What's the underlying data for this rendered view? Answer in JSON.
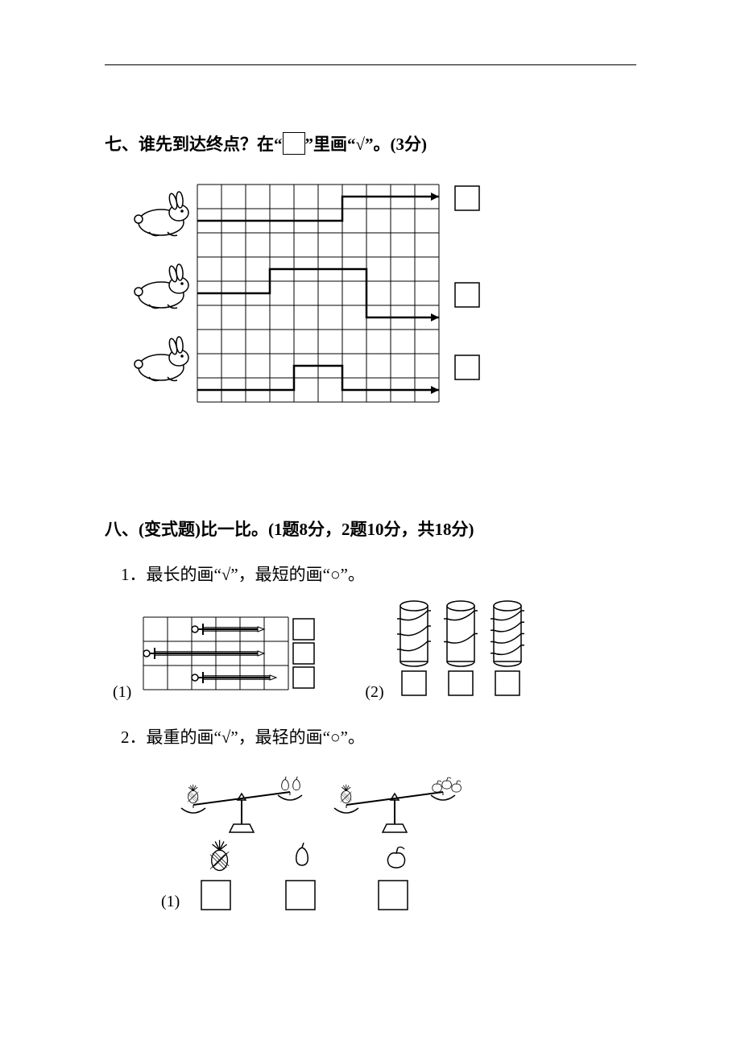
{
  "q7": {
    "title_prefix": "七、谁先到达终点？在“",
    "title_suffix": "”里画“√”。(3分)",
    "grid": {
      "cols": 10,
      "rows": 9,
      "cell": 30
    },
    "rabbits": [
      {
        "row": 1,
        "path_row": 1,
        "segments": [
          [
            0,
            1,
            6,
            1
          ],
          [
            6,
            1,
            6,
            0
          ],
          [
            6,
            0,
            10,
            0
          ]
        ]
      },
      {
        "row": 4,
        "path_row": 4,
        "segments": [
          [
            0,
            4,
            3,
            4
          ],
          [
            3,
            4,
            3,
            3
          ],
          [
            3,
            3,
            7,
            3
          ],
          [
            7,
            3,
            7,
            5
          ],
          [
            7,
            5,
            10,
            5
          ]
        ]
      },
      {
        "row": 7,
        "path_row": 7,
        "segments": [
          [
            0,
            8,
            4,
            8
          ],
          [
            4,
            8,
            4,
            7
          ],
          [
            4,
            7,
            6,
            7
          ],
          [
            6,
            7,
            6,
            8
          ],
          [
            6,
            8,
            10,
            8
          ]
        ]
      }
    ],
    "answer_box_rows": [
      0,
      4,
      7
    ],
    "colors": {
      "stroke": "#000000",
      "bg": "#ffffff",
      "path_width": 2
    }
  },
  "q8": {
    "title": "八、(变式题)比一比。(1题8分，2题10分，共18分)",
    "part1": {
      "label": "1．最长的画“√”，最短的画“○”。",
      "sub1_label": "(1)",
      "sub2_label": "(2)",
      "swords": {
        "grid": {
          "cols": 6,
          "rows": 3,
          "cell": 30
        },
        "items": [
          {
            "row": 0,
            "start": 2,
            "end": 5
          },
          {
            "row": 1,
            "start": 0,
            "end": 5
          },
          {
            "row": 2,
            "start": 2,
            "end": 5.5
          }
        ]
      },
      "cylinders": {
        "count": 3,
        "wraps": [
          3,
          2,
          4
        ]
      }
    },
    "part2": {
      "label": "2．最重的画“√”，最轻的画“○”。",
      "sub_label": "(1)",
      "scales": [
        {
          "left": "pineapple",
          "right": "pears",
          "tilt": "left"
        },
        {
          "left": "pineapple",
          "right": "apples",
          "tilt": "left"
        }
      ],
      "items": [
        "pineapple",
        "pear",
        "apple"
      ]
    }
  },
  "colors": {
    "stroke": "#000000",
    "bg": "#ffffff"
  }
}
